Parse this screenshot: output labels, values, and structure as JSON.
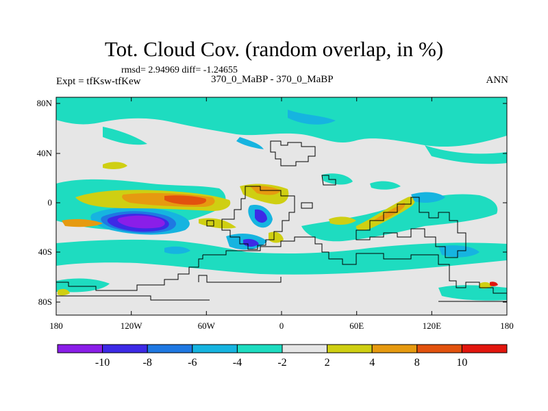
{
  "chart_data": {
    "type": "heatmap",
    "title": "Tot. Cloud Cov. (random overlap, in %)",
    "stats": "rmsd= 2.94969 diff= -1.24655",
    "experiment": "Expt = tfKsw-tfKew",
    "case_label": "370_0_MaBP - 370_0_MaBP",
    "season": "ANN",
    "x_ticks": [
      "180",
      "120W",
      "60W",
      "0",
      "60E",
      "120E",
      "180"
    ],
    "y_ticks": [
      "80N",
      "40N",
      "0",
      "40S",
      "80S"
    ],
    "xlim": [
      -180,
      180
    ],
    "ylim": [
      -90,
      90
    ],
    "colorbar": {
      "levels": [
        "-10",
        "-8",
        "-6",
        "-4",
        "-2",
        "2",
        "4",
        "8",
        "10"
      ],
      "colors": [
        "#8a1ee8",
        "#3d2ae6",
        "#1f78e2",
        "#16b4e0",
        "#1edcc0",
        "#e6e6e6",
        "#cfcf12",
        "#e69a10",
        "#e2520e",
        "#e2160e"
      ]
    },
    "regions": [
      {
        "name": "high-northern-band",
        "lon": [
          -180,
          180
        ],
        "lat": [
          60,
          82
        ],
        "class": "-4 to -2"
      },
      {
        "name": "east-pacific-negative-core",
        "lon": [
          -130,
          -80
        ],
        "lat": [
          -20,
          -8
        ],
        "class": "-10 to -8"
      },
      {
        "name": "east-pacific-positive-band",
        "lon": [
          -150,
          -70
        ],
        "lat": [
          -2,
          10
        ],
        "class": "4 to 8"
      },
      {
        "name": "south-atlantic-negative",
        "lon": [
          -25,
          -15
        ],
        "lat": [
          -20,
          -10
        ],
        "class": "-8 to -6"
      },
      {
        "name": "indian-ocean-positive",
        "lon": [
          40,
          110
        ],
        "lat": [
          -20,
          5
        ],
        "class": "2 to 4"
      },
      {
        "name": "southern-ocean-band",
        "lon": [
          -180,
          180
        ],
        "lat": [
          -65,
          -40
        ],
        "class": "-4 to -2"
      }
    ]
  }
}
